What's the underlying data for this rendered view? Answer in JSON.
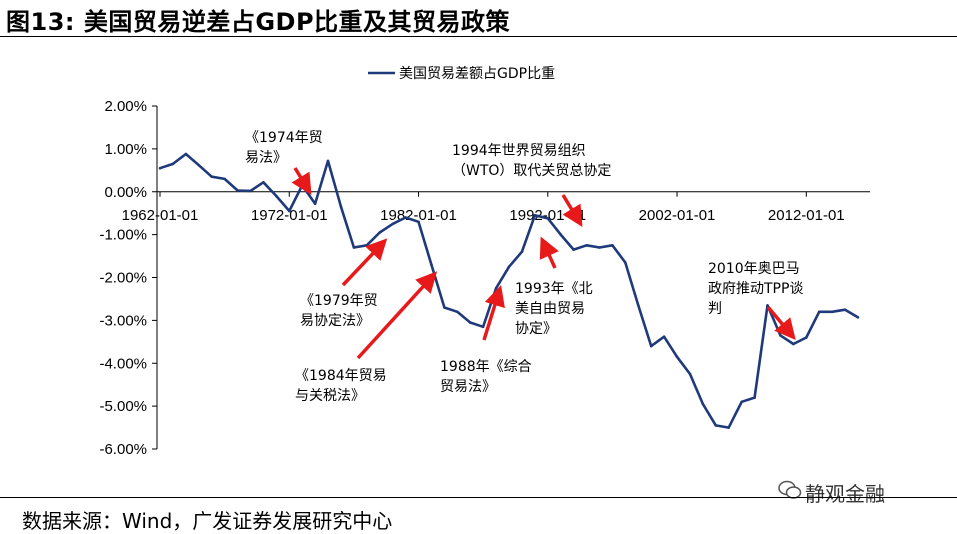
{
  "figure_title": "图13:  美国贸易逆差占GDP比重及其贸易政策",
  "source": "数据来源：Wind，广发证券发展研究中心",
  "watermark": "静观金融",
  "colors": {
    "series": "#1f3a7a",
    "arrow": "#e8191a",
    "axis": "#000000"
  },
  "chart_data": {
    "type": "line",
    "title": "",
    "xlabel": "",
    "ylabel": "",
    "ylim": [
      -6.0,
      2.0
    ],
    "y_ticks": [
      "2.00%",
      "1.00%",
      "0.00%",
      "-1.00%",
      "-2.00%",
      "-3.00%",
      "-4.00%",
      "-5.00%",
      "-6.00%"
    ],
    "x_ticks": [
      "1962-01-01",
      "1972-01-01",
      "1982-01-01",
      "1992-01-01",
      "2002-01-01",
      "2012-01-01"
    ],
    "legend": {
      "position": "top",
      "label": "美国贸易差额占GDP比重"
    },
    "series": [
      {
        "name": "美国贸易差额占GDP比重",
        "x": [
          1962,
          1963,
          1964,
          1965,
          1966,
          1967,
          1968,
          1969,
          1970,
          1971,
          1972,
          1973,
          1974,
          1975,
          1976,
          1977,
          1978,
          1979,
          1980,
          1981,
          1982,
          1983,
          1984,
          1985,
          1986,
          1987,
          1988,
          1989,
          1990,
          1991,
          1992,
          1993,
          1994,
          1995,
          1996,
          1997,
          1998,
          1999,
          2000,
          2001,
          2002,
          2003,
          2004,
          2005,
          2006,
          2007,
          2008,
          2009,
          2010,
          2011,
          2012,
          2013,
          2014,
          2015,
          2016
        ],
        "values": [
          0.55,
          0.65,
          0.88,
          0.62,
          0.35,
          0.3,
          0.03,
          0.02,
          0.22,
          -0.1,
          -0.45,
          0.15,
          -0.28,
          0.72,
          -0.35,
          -1.3,
          -1.25,
          -0.95,
          -0.75,
          -0.6,
          -0.7,
          -1.7,
          -2.7,
          -2.8,
          -3.05,
          -3.15,
          -2.25,
          -1.75,
          -1.4,
          -0.55,
          -0.62,
          -1.0,
          -1.35,
          -1.25,
          -1.3,
          -1.25,
          -1.65,
          -2.65,
          -3.6,
          -3.38,
          -3.85,
          -4.25,
          -4.95,
          -5.45,
          -5.5,
          -4.9,
          -4.8,
          -2.65,
          -3.35,
          -3.55,
          -3.4,
          -2.8,
          -2.8,
          -2.75,
          -2.93
        ]
      }
    ],
    "annotations": [
      {
        "lines": [
          "《1974年贸",
          "易法》"
        ]
      },
      {
        "lines": [
          "《1979年贸",
          "易协定法》"
        ]
      },
      {
        "lines": [
          "《1984年贸易",
          "与关税法》"
        ]
      },
      {
        "lines": [
          "1988年《综合",
          "贸易法》"
        ]
      },
      {
        "lines": [
          "1993年《北",
          "美自由贸易",
          "协定》"
        ]
      },
      {
        "lines": [
          "1994年世界贸易组织",
          "（WTO）取代关贸总协定"
        ]
      },
      {
        "lines": [
          "2010年奥巴马",
          "政府推动TPP谈",
          "判"
        ]
      }
    ]
  }
}
